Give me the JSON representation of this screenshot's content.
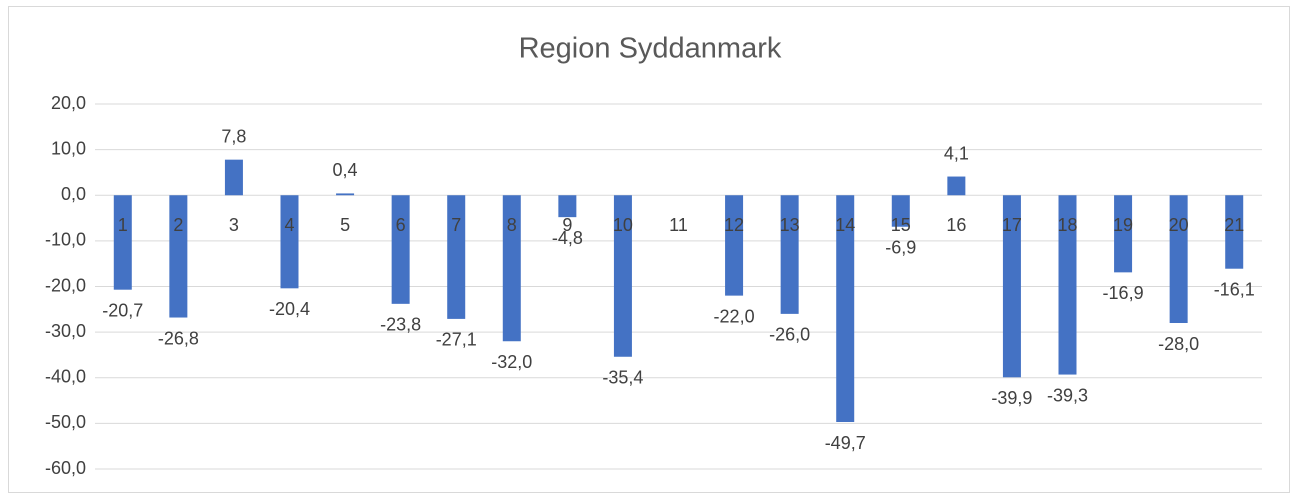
{
  "chart_data": {
    "type": "bar",
    "title": "Region Syddanmark",
    "categories": [
      "1",
      "2",
      "3",
      "4",
      "5",
      "6",
      "7",
      "8",
      "9",
      "10",
      "11",
      "12",
      "13",
      "14",
      "15",
      "16",
      "17",
      "18",
      "19",
      "20",
      "21"
    ],
    "values": [
      -20.7,
      -26.8,
      7.8,
      -20.4,
      0.4,
      -23.8,
      -27.1,
      -32.0,
      -4.8,
      -35.4,
      null,
      -22.0,
      -26.0,
      -49.7,
      -6.9,
      4.1,
      -39.9,
      -39.3,
      -16.9,
      -28.0,
      -16.1
    ],
    "value_labels": [
      "-20,7",
      "-26,8",
      "7,8",
      "-20,4",
      "0,4",
      "-23,8",
      "-27,1",
      "-32,0",
      "-4,8",
      "-35,4",
      null,
      "-22,0",
      "-26,0",
      "-49,7",
      "-6,9",
      "4,1",
      "-39,9",
      "-39,3",
      "-16,9",
      "-28,0",
      "-16,1"
    ],
    "color": "#4472c4",
    "ylim": [
      -60,
      20
    ],
    "yticks": [
      {
        "value": -60,
        "label": "-60,0"
      },
      {
        "value": -50,
        "label": "-50,0"
      },
      {
        "value": -40,
        "label": "-40,0"
      },
      {
        "value": -30,
        "label": "-30,0"
      },
      {
        "value": -20,
        "label": "-20,0"
      },
      {
        "value": -10,
        "label": "-10,0"
      },
      {
        "value": 0,
        "label": "0,0"
      },
      {
        "value": 10,
        "label": "10,0"
      },
      {
        "value": 20,
        "label": "20,0"
      }
    ],
    "grid": true
  }
}
